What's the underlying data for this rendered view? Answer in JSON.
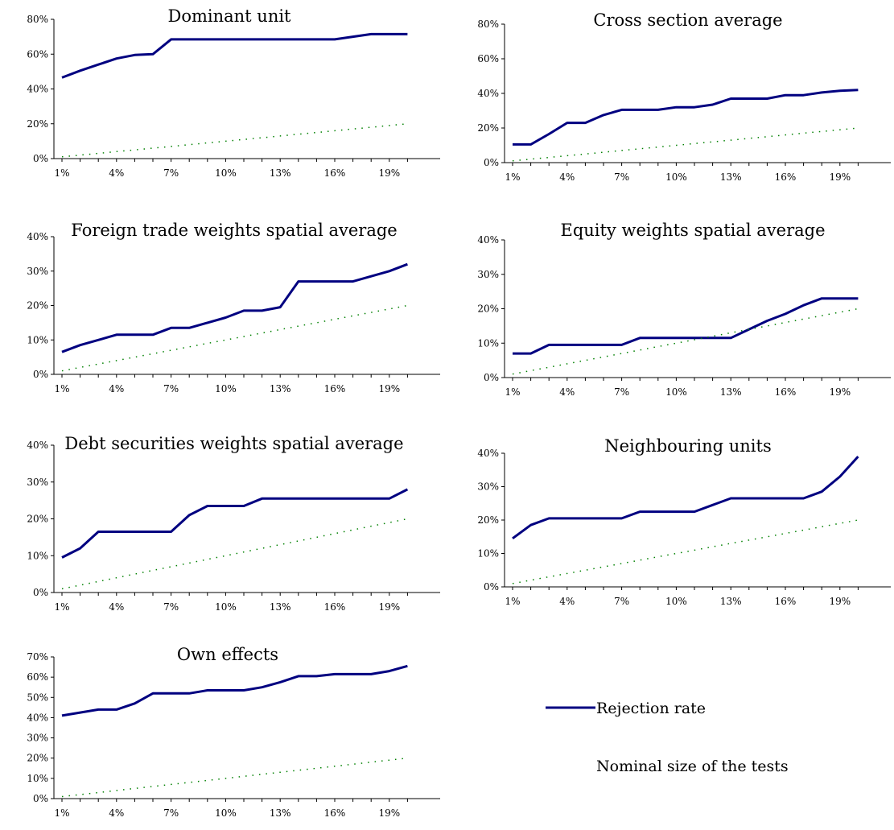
{
  "chart_data": [
    {
      "type": "line",
      "title": "Dominant unit",
      "ylim": [
        0,
        80
      ],
      "yticks": [
        "0%",
        "20%",
        "40%",
        "60%",
        "80%"
      ],
      "x": [
        "1%",
        "2%",
        "3%",
        "4%",
        "5%",
        "6%",
        "7%",
        "8%",
        "9%",
        "10%",
        "11%",
        "12%",
        "13%",
        "14%",
        "15%",
        "16%",
        "17%",
        "18%",
        "19%",
        "20%"
      ],
      "xticks": [
        "1%",
        "4%",
        "7%",
        "10%",
        "13%",
        "16%",
        "19%"
      ],
      "series": [
        {
          "name": "Rejection rate",
          "values": [
            46.5,
            50.5,
            54,
            57.5,
            59.5,
            60,
            68.5,
            68.5,
            68.5,
            68.5,
            68.5,
            68.5,
            68.5,
            68.5,
            68.5,
            68.5,
            70,
            71.5,
            71.5,
            71.5
          ]
        },
        {
          "name": "Nominal size of the tests",
          "values": [
            1,
            2,
            3,
            4,
            5,
            6,
            7,
            8,
            9,
            10,
            11,
            12,
            13,
            14,
            15,
            16,
            17,
            18,
            19,
            20
          ]
        }
      ]
    },
    {
      "type": "line",
      "title": "Cross section average",
      "ylim": [
        0,
        80
      ],
      "yticks": [
        "0%",
        "20%",
        "40%",
        "60%",
        "80%"
      ],
      "x": [
        "1%",
        "2%",
        "3%",
        "4%",
        "5%",
        "6%",
        "7%",
        "8%",
        "9%",
        "10%",
        "11%",
        "12%",
        "13%",
        "14%",
        "15%",
        "16%",
        "17%",
        "18%",
        "19%",
        "20%"
      ],
      "xticks": [
        "1%",
        "4%",
        "7%",
        "10%",
        "13%",
        "16%",
        "19%"
      ],
      "series": [
        {
          "name": "Rejection rate",
          "values": [
            10.5,
            10.5,
            16.5,
            23,
            23,
            27.5,
            30.5,
            30.5,
            30.5,
            32,
            32,
            33.5,
            37,
            37,
            37,
            39,
            39,
            40.5,
            41.5,
            42
          ]
        },
        {
          "name": "Nominal size of the tests",
          "values": [
            1,
            2,
            3,
            4,
            5,
            6,
            7,
            8,
            9,
            10,
            11,
            12,
            13,
            14,
            15,
            16,
            17,
            18,
            19,
            20
          ]
        }
      ]
    },
    {
      "type": "line",
      "title": "Foreign trade weights spatial average",
      "ylim": [
        0,
        40
      ],
      "yticks": [
        "0%",
        "10%",
        "20%",
        "30%",
        "40%"
      ],
      "x": [
        "1%",
        "2%",
        "3%",
        "4%",
        "5%",
        "6%",
        "7%",
        "8%",
        "9%",
        "10%",
        "11%",
        "12%",
        "13%",
        "14%",
        "15%",
        "16%",
        "17%",
        "18%",
        "19%",
        "20%"
      ],
      "xticks": [
        "1%",
        "4%",
        "7%",
        "10%",
        "13%",
        "16%",
        "19%"
      ],
      "series": [
        {
          "name": "Rejection rate",
          "values": [
            6.5,
            8.5,
            10,
            11.5,
            11.5,
            11.5,
            13.5,
            13.5,
            15,
            16.5,
            18.5,
            18.5,
            19.5,
            27,
            27,
            27,
            27,
            28.5,
            30,
            32
          ]
        },
        {
          "name": "Nominal size of the tests",
          "values": [
            1,
            2,
            3,
            4,
            5,
            6,
            7,
            8,
            9,
            10,
            11,
            12,
            13,
            14,
            15,
            16,
            17,
            18,
            19,
            20
          ]
        }
      ]
    },
    {
      "type": "line",
      "title": "Equity weights spatial average",
      "ylim": [
        0,
        40
      ],
      "yticks": [
        "0%",
        "10%",
        "20%",
        "30%",
        "40%"
      ],
      "x": [
        "1%",
        "2%",
        "3%",
        "4%",
        "5%",
        "6%",
        "7%",
        "8%",
        "9%",
        "10%",
        "11%",
        "12%",
        "13%",
        "14%",
        "15%",
        "16%",
        "17%",
        "18%",
        "19%",
        "20%"
      ],
      "xticks": [
        "1%",
        "4%",
        "7%",
        "10%",
        "13%",
        "16%",
        "19%"
      ],
      "series": [
        {
          "name": "Rejection rate",
          "values": [
            7,
            7,
            9.5,
            9.5,
            9.5,
            9.5,
            9.5,
            11.5,
            11.5,
            11.5,
            11.5,
            11.5,
            11.5,
            14,
            16.5,
            18.5,
            21,
            23,
            23,
            23
          ]
        },
        {
          "name": "Nominal size of the tests",
          "values": [
            1,
            2,
            3,
            4,
            5,
            6,
            7,
            8,
            9,
            10,
            11,
            12,
            13,
            14,
            15,
            16,
            17,
            18,
            19,
            20
          ]
        }
      ]
    },
    {
      "type": "line",
      "title": "Debt securities weights spatial average",
      "ylim": [
        0,
        40
      ],
      "yticks": [
        "0%",
        "10%",
        "20%",
        "30%",
        "40%"
      ],
      "x": [
        "1%",
        "2%",
        "3%",
        "4%",
        "5%",
        "6%",
        "7%",
        "8%",
        "9%",
        "10%",
        "11%",
        "12%",
        "13%",
        "14%",
        "15%",
        "16%",
        "17%",
        "18%",
        "19%",
        "20%"
      ],
      "xticks": [
        "1%",
        "4%",
        "7%",
        "10%",
        "13%",
        "16%",
        "19%"
      ],
      "series": [
        {
          "name": "Rejection rate",
          "values": [
            9.5,
            12,
            16.5,
            16.5,
            16.5,
            16.5,
            16.5,
            21,
            23.5,
            23.5,
            23.5,
            25.5,
            25.5,
            25.5,
            25.5,
            25.5,
            25.5,
            25.5,
            25.5,
            28
          ]
        },
        {
          "name": "Nominal size of the tests",
          "values": [
            1,
            2,
            3,
            4,
            5,
            6,
            7,
            8,
            9,
            10,
            11,
            12,
            13,
            14,
            15,
            16,
            17,
            18,
            19,
            20
          ]
        }
      ]
    },
    {
      "type": "line",
      "title": "Neighbouring units",
      "ylim": [
        0,
        40
      ],
      "yticks": [
        "0%",
        "10%",
        "20%",
        "30%",
        "40%"
      ],
      "x": [
        "1%",
        "2%",
        "3%",
        "4%",
        "5%",
        "6%",
        "7%",
        "8%",
        "9%",
        "10%",
        "11%",
        "12%",
        "13%",
        "14%",
        "15%",
        "16%",
        "17%",
        "18%",
        "19%",
        "20%"
      ],
      "xticks": [
        "1%",
        "4%",
        "7%",
        "10%",
        "13%",
        "16%",
        "19%"
      ],
      "series": [
        {
          "name": "Rejection rate",
          "values": [
            14.5,
            18.5,
            20.5,
            20.5,
            20.5,
            20.5,
            20.5,
            22.5,
            22.5,
            22.5,
            22.5,
            24.5,
            26.5,
            26.5,
            26.5,
            26.5,
            26.5,
            28.5,
            33,
            39
          ]
        },
        {
          "name": "Nominal size of the tests",
          "values": [
            1,
            2,
            3,
            4,
            5,
            6,
            7,
            8,
            9,
            10,
            11,
            12,
            13,
            14,
            15,
            16,
            17,
            18,
            19,
            20
          ]
        }
      ]
    },
    {
      "type": "line",
      "title": "Own effects",
      "ylim": [
        0,
        70
      ],
      "yticks": [
        "0%",
        "10%",
        "20%",
        "30%",
        "40%",
        "50%",
        "60%",
        "70%"
      ],
      "x": [
        "1%",
        "2%",
        "3%",
        "4%",
        "5%",
        "6%",
        "7%",
        "8%",
        "9%",
        "10%",
        "11%",
        "12%",
        "13%",
        "14%",
        "15%",
        "16%",
        "17%",
        "18%",
        "19%",
        "20%"
      ],
      "xticks": [
        "1%",
        "4%",
        "7%",
        "10%",
        "13%",
        "16%",
        "19%"
      ],
      "series": [
        {
          "name": "Rejection rate",
          "values": [
            41,
            42.5,
            44,
            44,
            47,
            52,
            52,
            52,
            53.5,
            53.5,
            53.5,
            55,
            57.5,
            60.5,
            60.5,
            61.5,
            61.5,
            61.5,
            63,
            65.5
          ]
        },
        {
          "name": "Nominal size of the tests",
          "values": [
            1,
            2,
            3,
            4,
            5,
            6,
            7,
            8,
            9,
            10,
            11,
            12,
            13,
            14,
            15,
            16,
            17,
            18,
            19,
            20
          ]
        }
      ]
    }
  ],
  "legend": {
    "rejection_label": "Rejection rate",
    "nominal_label": "Nominal size of the tests"
  },
  "colors": {
    "rejection": "#000080",
    "nominal": "#008000",
    "axis": "#000000"
  }
}
